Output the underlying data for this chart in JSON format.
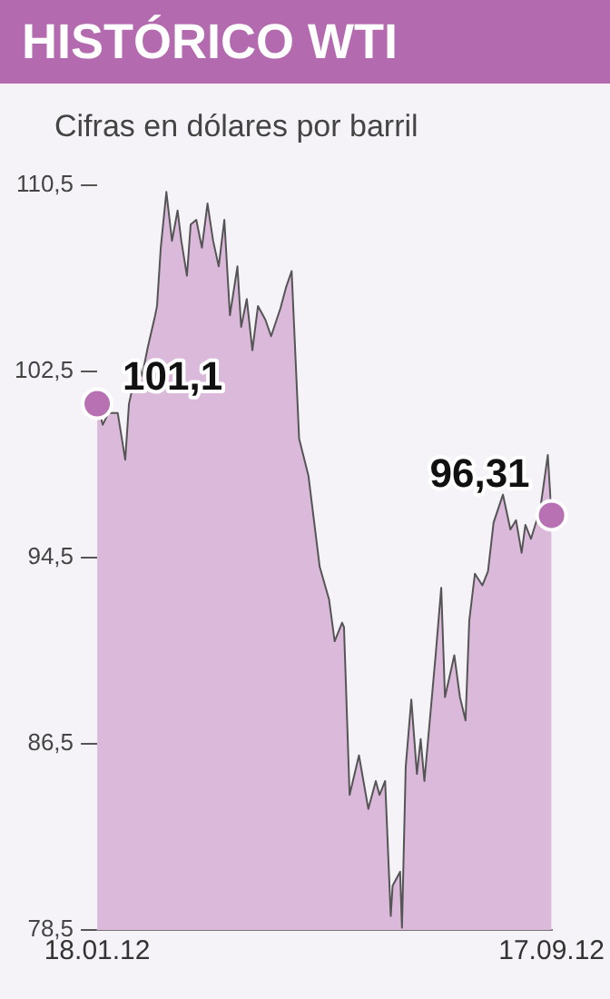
{
  "chart_data": {
    "type": "area",
    "title": "HISTÓRICO WTI",
    "subtitle": "Cifras en dólares por barril",
    "x": [
      "2012-01-18",
      "2012-01-21",
      "2012-01-24",
      "2012-01-29",
      "2012-02-02",
      "2012-02-04",
      "2012-02-09",
      "2012-02-11",
      "2012-02-14",
      "2012-02-18",
      "2012-02-19",
      "2012-02-21",
      "2012-02-24",
      "2012-02-27",
      "2012-03-01",
      "2012-03-03",
      "2012-03-06",
      "2012-03-08",
      "2012-03-11",
      "2012-03-14",
      "2012-03-17",
      "2012-03-20",
      "2012-03-23",
      "2012-03-26",
      "2012-03-29",
      "2012-04-02",
      "2012-04-04",
      "2012-04-07",
      "2012-04-10",
      "2012-04-13",
      "2012-04-17",
      "2012-04-20",
      "2012-04-25",
      "2012-04-28",
      "2012-05-01",
      "2012-05-05",
      "2012-05-10",
      "2012-05-16",
      "2012-05-21",
      "2012-05-24",
      "2012-05-28",
      "2012-05-29",
      "2012-06-01",
      "2012-06-06",
      "2012-06-11",
      "2012-06-15",
      "2012-06-17",
      "2012-06-20",
      "2012-06-23",
      "2012-06-24",
      "2012-06-28",
      "2012-06-29",
      "2012-07-01",
      "2012-07-04",
      "2012-07-07",
      "2012-07-09",
      "2012-07-11",
      "2012-07-13",
      "2012-07-17",
      "2012-07-20",
      "2012-07-22",
      "2012-07-27",
      "2012-07-30",
      "2012-08-02",
      "2012-08-04",
      "2012-08-07",
      "2012-08-11",
      "2012-08-14",
      "2012-08-17",
      "2012-08-22",
      "2012-08-26",
      "2012-08-29",
      "2012-09-01",
      "2012-09-03",
      "2012-09-06",
      "2012-09-11",
      "2012-09-15",
      "2012-09-17"
    ],
    "values": [
      101.1,
      100.2,
      100.7,
      100.7,
      98.7,
      101.1,
      102.9,
      102.3,
      103.5,
      104.9,
      105.3,
      107.8,
      110.2,
      108.1,
      109.4,
      108.1,
      106.6,
      108.8,
      109.0,
      107.8,
      109.7,
      108.1,
      107.0,
      109.0,
      104.9,
      107.0,
      104.4,
      105.6,
      103.4,
      105.3,
      104.7,
      104.0,
      105.2,
      106.1,
      106.8,
      99.6,
      98.0,
      94.1,
      92.7,
      90.9,
      91.7,
      91.5,
      84.3,
      86.0,
      83.7,
      84.9,
      84.3,
      84.9,
      79.1,
      80.4,
      81.0,
      78.6,
      85.5,
      88.4,
      85.2,
      86.7,
      84.9,
      86.7,
      90.3,
      93.2,
      88.5,
      90.3,
      88.5,
      87.5,
      91.8,
      93.8,
      93.3,
      93.9,
      96.0,
      97.2,
      95.7,
      96.1,
      94.7,
      95.9,
      95.3,
      96.6,
      98.9,
      96.31
    ],
    "value_labels": [
      "101,1",
      null,
      null,
      null,
      null,
      null,
      null,
      null,
      null,
      null,
      null,
      null,
      null,
      null,
      null,
      null,
      null,
      null,
      null,
      null,
      null,
      null,
      null,
      null,
      null,
      null,
      null,
      null,
      null,
      null,
      null,
      null,
      null,
      null,
      null,
      null,
      null,
      null,
      null,
      null,
      null,
      null,
      null,
      null,
      null,
      null,
      null,
      null,
      null,
      null,
      null,
      null,
      null,
      null,
      null,
      null,
      null,
      null,
      null,
      null,
      null,
      null,
      null,
      null,
      null,
      null,
      null,
      null,
      null,
      null,
      null,
      null,
      null,
      null,
      null,
      null,
      null,
      "96,31"
    ],
    "color": "#dbb9da",
    "ylim": [
      78.5,
      110.5
    ],
    "yticks": [
      {
        "value": 78.5,
        "label": "78,5"
      },
      {
        "value": 86.5,
        "label": "86,5"
      },
      {
        "value": 94.5,
        "label": "94,5"
      },
      {
        "value": 102.5,
        "label": "102,5"
      },
      {
        "value": 110.5,
        "label": "110,5"
      }
    ],
    "xlim": [
      "2012-01-18",
      "2012-09-17"
    ],
    "xticks": [
      {
        "value": "2012-01-18",
        "label": "18.01.12"
      },
      {
        "value": "2012-09-17",
        "label": "17.09.12"
      }
    ],
    "grid": false,
    "legend": false,
    "marker": "none",
    "line_style": "solid"
  }
}
